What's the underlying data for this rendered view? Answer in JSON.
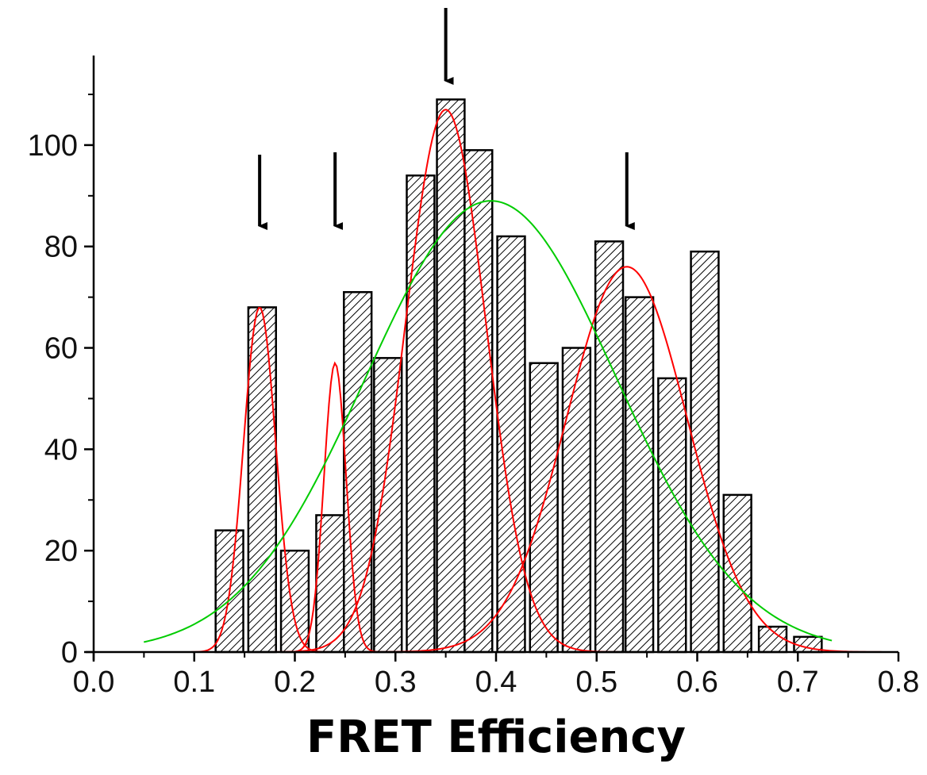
{
  "chart_data": {
    "type": "bar",
    "title": "",
    "xlabel": "FRET Efficiency",
    "ylabel": "",
    "xlim": [
      0.0,
      0.8
    ],
    "ylim": [
      0,
      110
    ],
    "x_ticks": [
      "0.0",
      "0.1",
      "0.2",
      "0.3",
      "0.4",
      "0.5",
      "0.6",
      "0.7",
      "0.8"
    ],
    "y_ticks": [
      "0",
      "20",
      "40",
      "60",
      "80",
      "100"
    ],
    "grid": false,
    "bins": [
      {
        "x": 0.135,
        "value": 24
      },
      {
        "x": 0.1675,
        "value": 68
      },
      {
        "x": 0.2,
        "value": 20
      },
      {
        "x": 0.235,
        "value": 27
      },
      {
        "x": 0.2625,
        "value": 71
      },
      {
        "x": 0.2925,
        "value": 58
      },
      {
        "x": 0.325,
        "value": 94
      },
      {
        "x": 0.355,
        "value": 109
      },
      {
        "x": 0.3825,
        "value": 99
      },
      {
        "x": 0.415,
        "value": 82
      },
      {
        "x": 0.4475,
        "value": 57
      },
      {
        "x": 0.48,
        "value": 60
      },
      {
        "x": 0.5125,
        "value": 81
      },
      {
        "x": 0.5425,
        "value": 70
      },
      {
        "x": 0.575,
        "value": 54
      },
      {
        "x": 0.6075,
        "value": 79
      },
      {
        "x": 0.64,
        "value": 31
      },
      {
        "x": 0.675,
        "value": 5
      },
      {
        "x": 0.71,
        "value": 3
      }
    ],
    "bar_width": 0.0275,
    "fits": [
      {
        "color": "#ff0000",
        "peaks": [
          {
            "center": 0.165,
            "amplitude": 68,
            "sigma": 0.016
          },
          {
            "center": 0.24,
            "amplitude": 57,
            "sigma": 0.011
          },
          {
            "center": 0.35,
            "amplitude": 107,
            "sigma": 0.04
          },
          {
            "center": 0.53,
            "amplitude": 76,
            "sigma": 0.06
          }
        ]
      },
      {
        "color": "#00cc00",
        "peaks": [
          {
            "center": 0.395,
            "amplitude": 89,
            "sigma": 0.125
          }
        ]
      }
    ],
    "arrows_at": [
      0.165,
      0.24,
      0.35,
      0.53
    ],
    "colors": {
      "bar_stroke": "#000000",
      "hatch": "#000000",
      "axis": "#000000",
      "fit_1": "#ff0000",
      "fit_2": "#00cc00"
    }
  }
}
